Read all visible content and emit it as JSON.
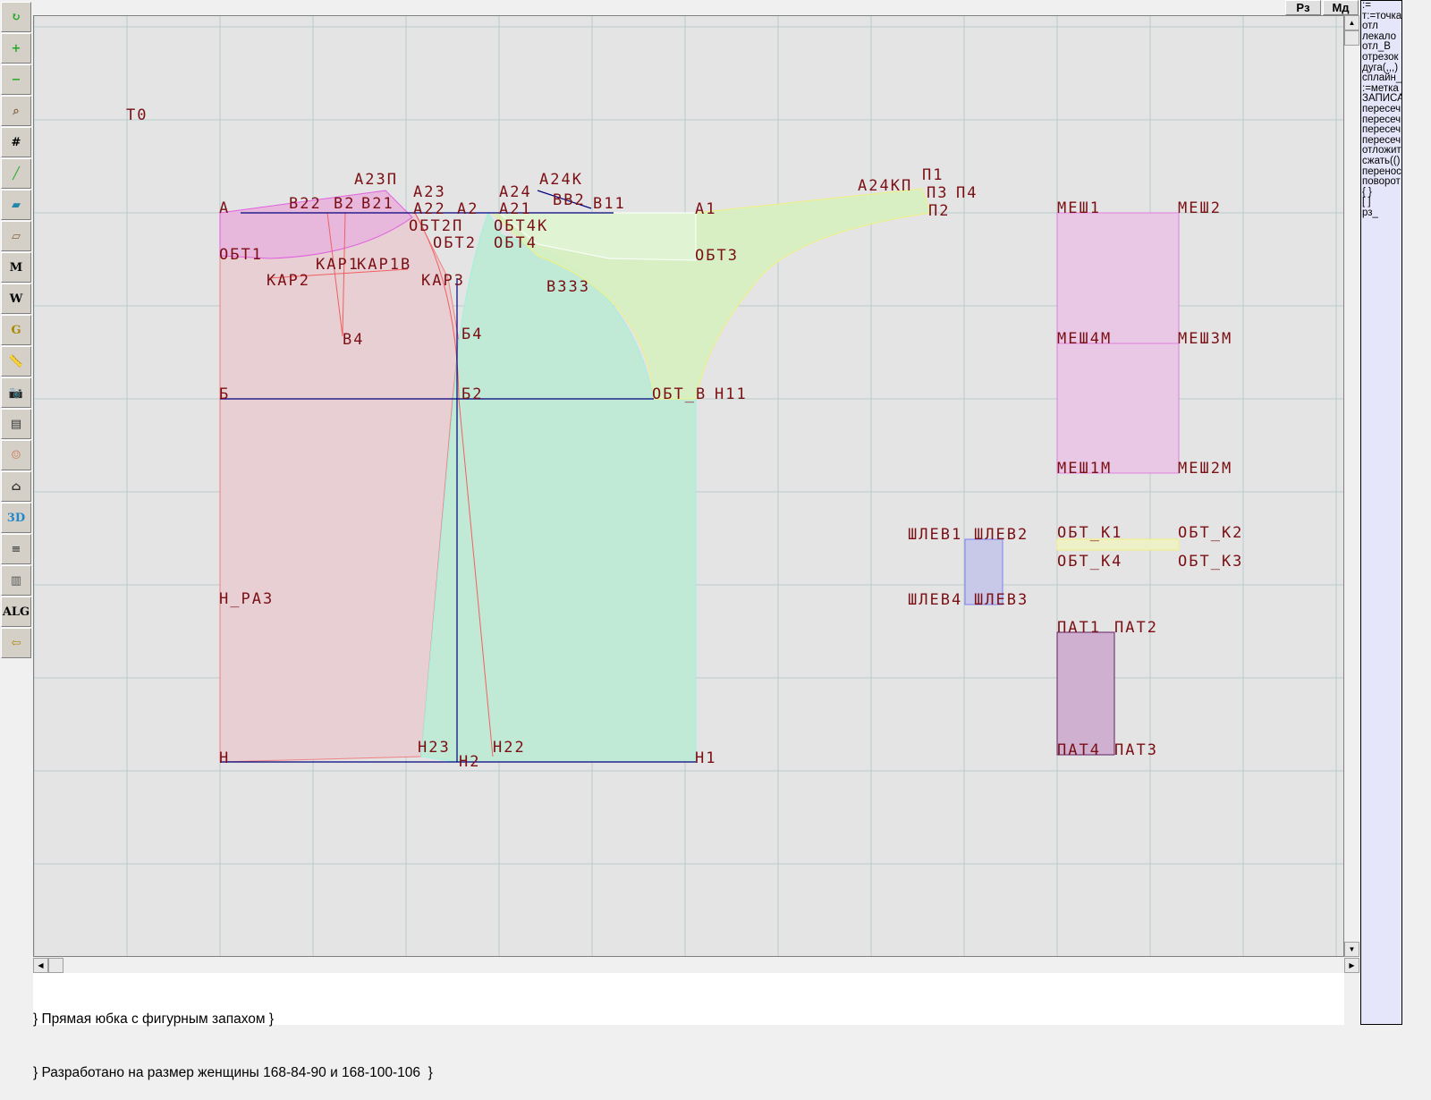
{
  "toolbar": {
    "icons": [
      "refresh-icon",
      "zoom-in-icon",
      "zoom-out-icon",
      "zoom-pattern-icon",
      "grid-icon",
      "line-segment-icon",
      "map-icon",
      "pattern-piece-icon",
      "pattern-m-icon",
      "compass-icon",
      "pattern-g-icon",
      "ruler-icon",
      "camera-icon",
      "table-icon",
      "woman-avatar-icon",
      "jacket-icon",
      "3d-icon",
      "document-icon",
      "layers-icon",
      "alg-icon",
      "exit-icon"
    ],
    "glyphs": [
      "↻",
      "+",
      "−",
      "⌕",
      "#",
      "╱",
      "▰",
      "▱",
      "M",
      "W",
      "G",
      "📏",
      "📷",
      "▤",
      "☺",
      "⌂",
      "3D",
      "≡",
      "▥",
      "ALG",
      "⇦"
    ]
  },
  "top_buttons": {
    "rz": "Рз",
    "md": "Мд"
  },
  "commands": [
    ":=",
    "т:=точка",
    "отл",
    "лекало",
    "отл_В",
    "отрезок",
    "дуга(,,,)",
    "сплайн_",
    ":=метка",
    "ЗАПИСА",
    "пересеч",
    "пересеч",
    "пересеч",
    "пересеч",
    "отложит",
    "сжать(()",
    "перенос",
    "поворот",
    "{ }",
    "[ ]",
    "рз_"
  ],
  "memo": [
    "} Прямая юбка с фигурным запахом }",
    "} Разработано на размер женщины 168-84-90 и 168-100-106  }"
  ],
  "colors": {
    "back_panel": "#e8cfd3",
    "yoke": "#e8b8dc",
    "front_panel": "#c0ead6",
    "facing": "#d6f0c0",
    "label": "#7a0f14",
    "construction_line": "#000080"
  },
  "labels": [
    "Т0",
    "А",
    "ОБТ1",
    "В22",
    "В2",
    "В21",
    "А23П",
    "А23",
    "А22",
    "А2",
    "ОБТ2П",
    "ОБТ2",
    "ОБТ4",
    "ОБТ4К",
    "А24",
    "А21",
    "А24К",
    "ВВ2",
    "В11",
    "В333",
    "КАР2",
    "КАР1",
    "КАР1В",
    "КАР3",
    "В4",
    "Б4",
    "Б",
    "Б2",
    "ОБТ_В",
    "Н11",
    "А1",
    "ОБТ3",
    "А24КП",
    "П1",
    "П3",
    "П4",
    "П2",
    "Н_РАЗ",
    "Н23",
    "Н22",
    "Н2",
    "Н",
    "Н1",
    "МЕШ1",
    "МЕШ2",
    "МЕШ4М",
    "МЕШ3М",
    "МЕШ1М",
    "МЕШ2М",
    "ШЛЕВ1",
    "ШЛЕВ2",
    "ОБТ_К1",
    "ОБТ_К4",
    "ОБТ_К2",
    "ОБТ_К3",
    "ШЛЕВ4",
    "ШЛЕВ3",
    "ПАТ1",
    "ПАТ2",
    "ПАТ4",
    "ПАТ3"
  ]
}
